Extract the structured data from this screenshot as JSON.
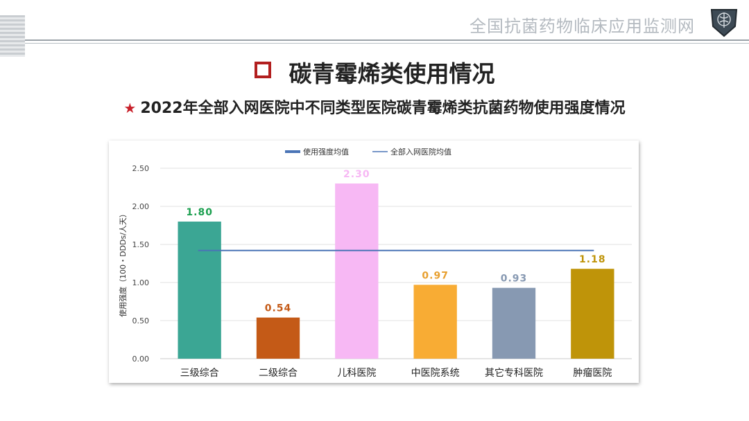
{
  "header": {
    "site_title": "全国抗菌药物临床应用监测网"
  },
  "section_title": "碳青霉烯类使用情况",
  "subtitle": "2022年全部入网医院中不同类型医院碳青霉烯类抗菌药物使用强度情况",
  "chart_data": {
    "type": "bar",
    "categories": [
      "三级综合",
      "二级综合",
      "儿科医院",
      "中医院系统",
      "其它专科医院",
      "肿瘤医院"
    ],
    "values": [
      1.8,
      0.54,
      2.3,
      0.97,
      0.93,
      1.18
    ],
    "value_labels": [
      "1.80",
      "0.54",
      "2.30",
      "0.97",
      "0.93",
      "1.18"
    ],
    "bar_colors": [
      "#3ba694",
      "#c45a17",
      "#f7b8f4",
      "#f8ac34",
      "#8799b2",
      "#bf9409"
    ],
    "label_colors": [
      "#1b9f4f",
      "#c45a17",
      "#f7b8f4",
      "#e8a030",
      "#8799b2",
      "#bf9409"
    ],
    "reference_line": {
      "name": "全部入网医院均值",
      "value": 1.42,
      "color": "#4a74b6"
    },
    "legend": [
      {
        "label": "使用强度均值",
        "color": "#4a74b6",
        "style": "thick"
      },
      {
        "label": "全部入网医院均值",
        "color": "#4a74b6",
        "style": "thin"
      }
    ],
    "legend_position": "top-center",
    "ylabel": "使用强度（100・DDDs/人天）",
    "xlabel": "",
    "ylim": [
      0,
      2.5
    ],
    "yticks": [
      "0.00",
      "0.50",
      "1.00",
      "1.50",
      "2.00",
      "2.50"
    ],
    "grid": true
  }
}
